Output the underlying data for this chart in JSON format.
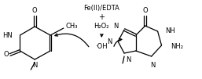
{
  "fig_width": 2.57,
  "fig_height": 1.01,
  "dpi": 100,
  "bg_color": "#ffffff",
  "text_color": "#000000",
  "font_size": 6.0,
  "center_label1": "Fe(II)/EDTA",
  "center_label2": "+",
  "center_label3": "H₂O₂",
  "center_label4": "·OH"
}
